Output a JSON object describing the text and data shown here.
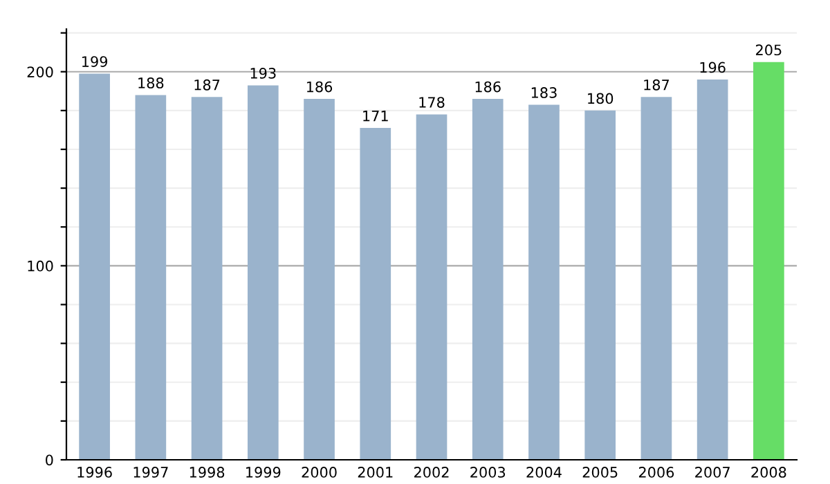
{
  "chart_data": {
    "type": "bar",
    "categories": [
      "1996",
      "1997",
      "1998",
      "1999",
      "2000",
      "2001",
      "2002",
      "2003",
      "2004",
      "2005",
      "2006",
      "2007",
      "2008"
    ],
    "values": [
      199,
      188,
      187,
      193,
      186,
      171,
      178,
      186,
      183,
      180,
      187,
      196,
      205
    ],
    "colors": [
      "#9ab3cc",
      "#9ab3cc",
      "#9ab3cc",
      "#9ab3cc",
      "#9ab3cc",
      "#9ab3cc",
      "#9ab3cc",
      "#9ab3cc",
      "#9ab3cc",
      "#9ab3cc",
      "#9ab3cc",
      "#9ab3cc",
      "#66dd66"
    ],
    "ylim": [
      0,
      222
    ],
    "yticks": [
      0,
      {
        "value": 20,
        "label": null
      },
      {
        "value": 40,
        "label": null
      },
      {
        "value": 60,
        "label": null
      },
      {
        "value": 80,
        "label": null
      },
      100,
      {
        "value": 120,
        "label": null
      },
      {
        "value": 140,
        "label": null
      },
      {
        "value": 160,
        "label": null
      },
      {
        "value": 180,
        "label": null
      },
      200,
      {
        "value": 220,
        "label": null
      }
    ],
    "grid": "y",
    "data_labels": true
  }
}
